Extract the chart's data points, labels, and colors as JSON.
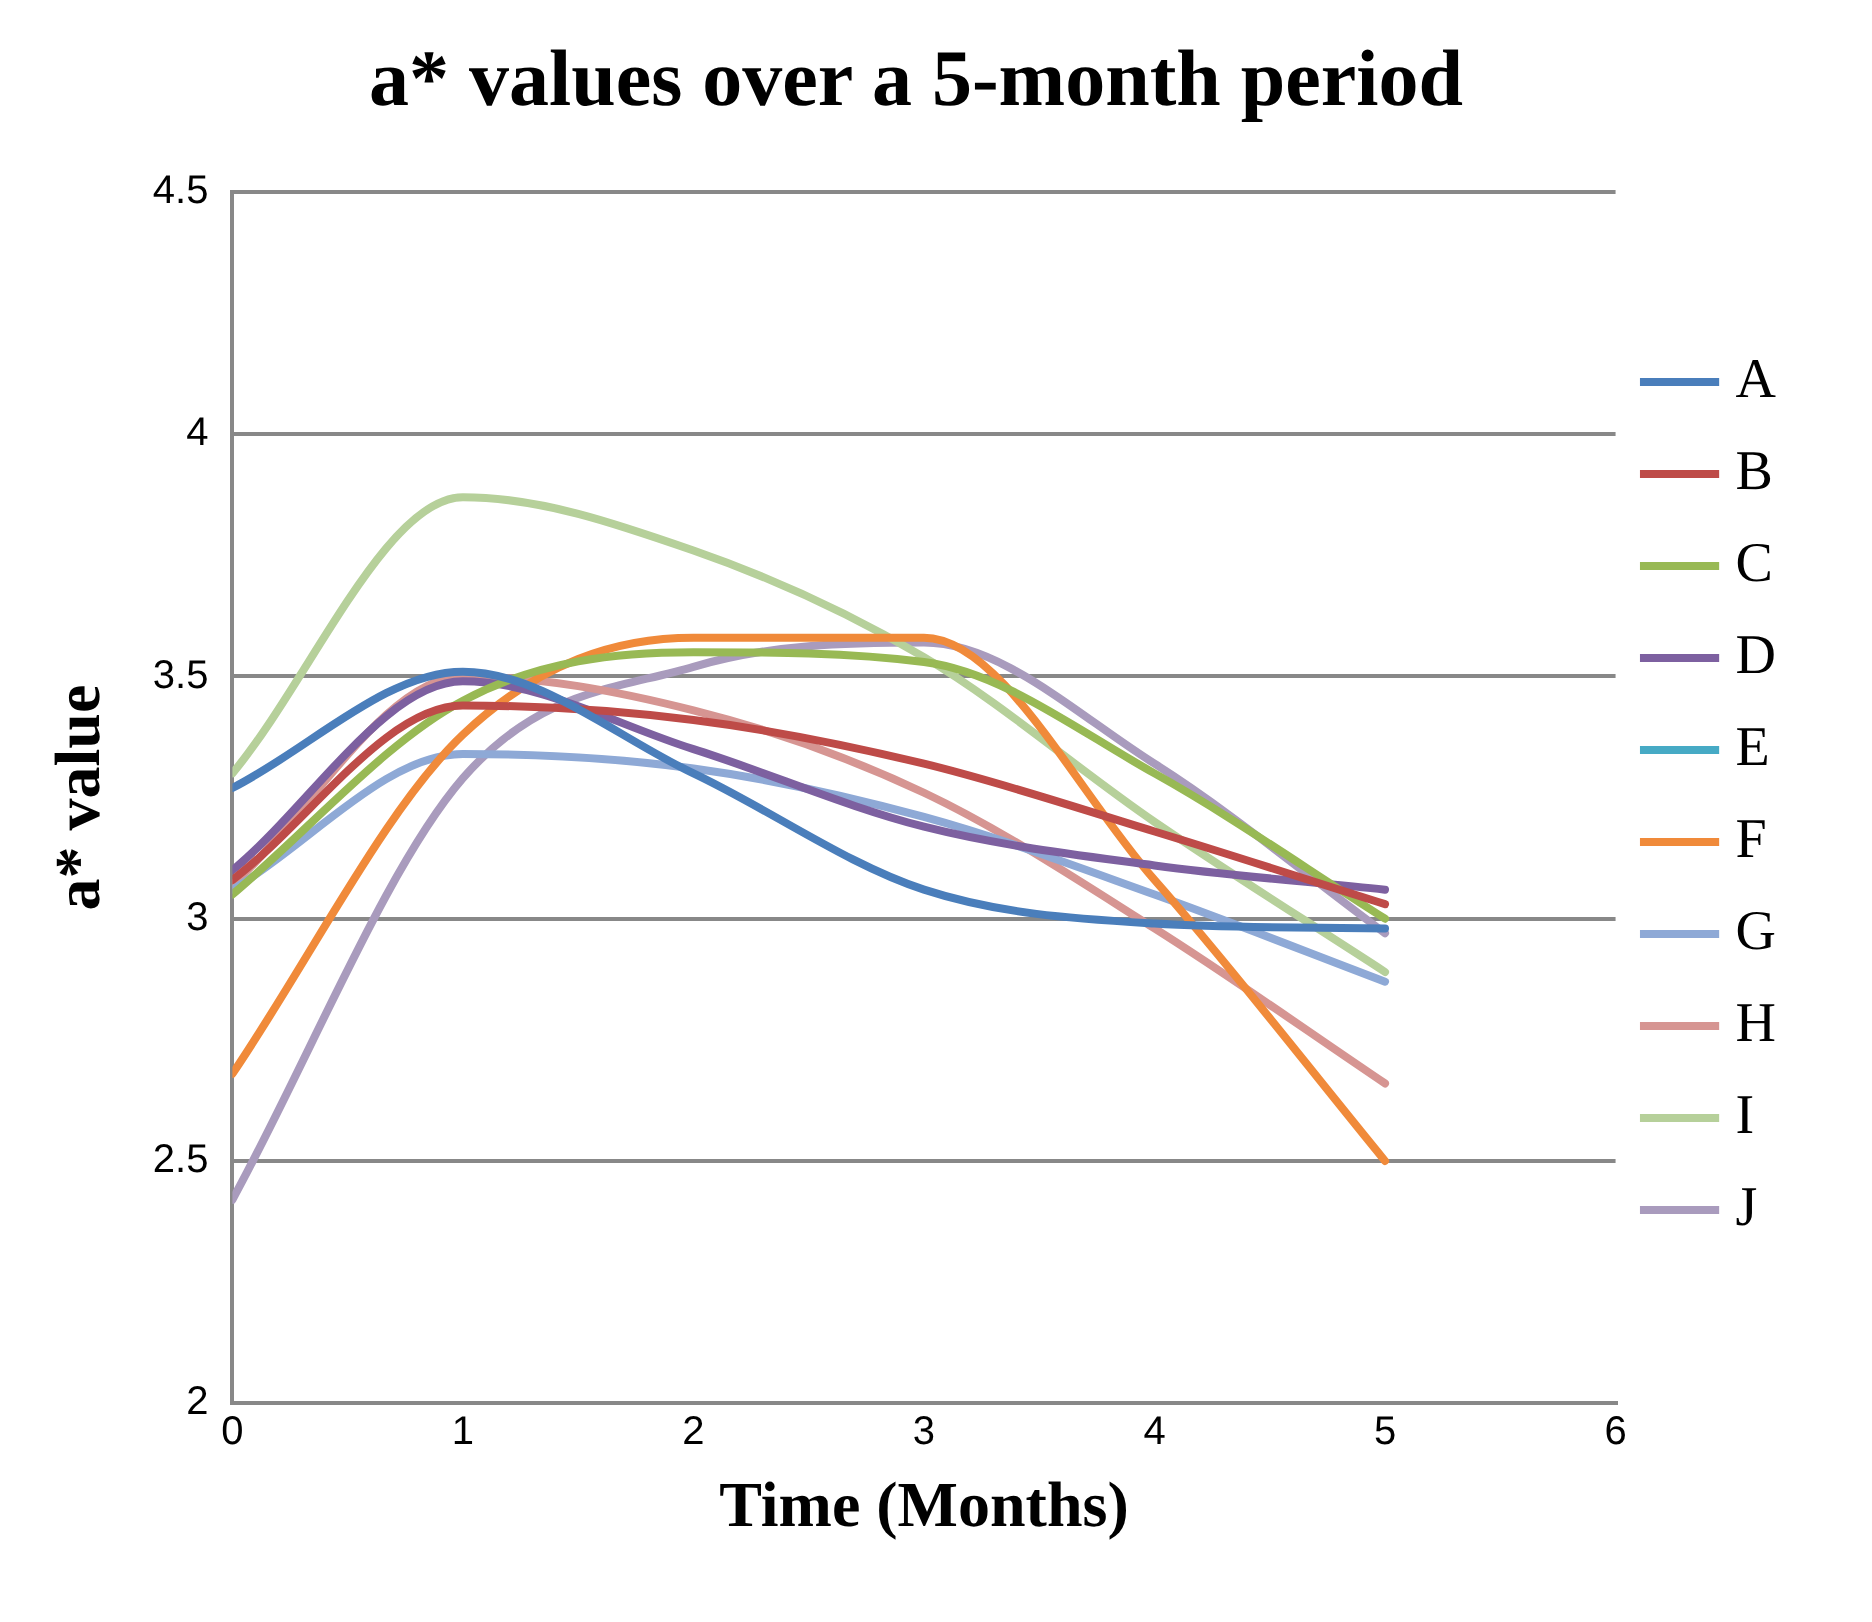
{
  "chart_data": {
    "type": "line",
    "title": "a* values over a 5-month period",
    "xlabel": "Time (Months)",
    "ylabel": "a* value",
    "x": [
      0,
      1,
      2,
      3,
      4,
      5
    ],
    "xlim": [
      0,
      6
    ],
    "xticks": [
      0,
      1,
      2,
      3,
      4,
      5,
      6
    ],
    "ylim": [
      2,
      4.5
    ],
    "yticks": [
      2,
      2.5,
      3,
      3.5,
      4,
      4.5
    ],
    "grid": "y",
    "legend": "right",
    "marker": "none",
    "series": [
      {
        "name": "A",
        "color": "#4a7ebb",
        "values": [
          3.27,
          3.51,
          3.3,
          3.06,
          2.99,
          2.98
        ]
      },
      {
        "name": "B",
        "color": "#be4b48",
        "values": [
          3.08,
          3.44,
          3.41,
          3.32,
          3.18,
          3.03
        ]
      },
      {
        "name": "C",
        "color": "#98b954",
        "values": [
          3.05,
          3.45,
          3.55,
          3.53,
          3.3,
          3.0
        ]
      },
      {
        "name": "D",
        "color": "#7d60a0",
        "values": [
          3.1,
          3.49,
          3.35,
          3.19,
          3.11,
          3.06
        ]
      },
      {
        "name": "E",
        "color": "#46aac5",
        "values": [
          null,
          null,
          null,
          null,
          null,
          null
        ]
      },
      {
        "name": "F",
        "color": "#f08a3a",
        "values": [
          2.68,
          3.38,
          3.58,
          3.58,
          3.08,
          2.5
        ]
      },
      {
        "name": "G",
        "color": "#8ea9d6",
        "values": [
          3.06,
          3.34,
          3.31,
          3.21,
          3.05,
          2.87
        ]
      },
      {
        "name": "H",
        "color": "#d69592",
        "values": [
          3.07,
          3.5,
          3.43,
          3.26,
          2.98,
          2.66
        ]
      },
      {
        "name": "I",
        "color": "#b6d09a",
        "values": [
          3.3,
          3.87,
          3.76,
          3.54,
          3.2,
          2.89
        ]
      },
      {
        "name": "J",
        "color": "#a99bbd",
        "values": [
          2.42,
          3.29,
          3.52,
          3.57,
          3.32,
          2.97
        ]
      }
    ]
  }
}
